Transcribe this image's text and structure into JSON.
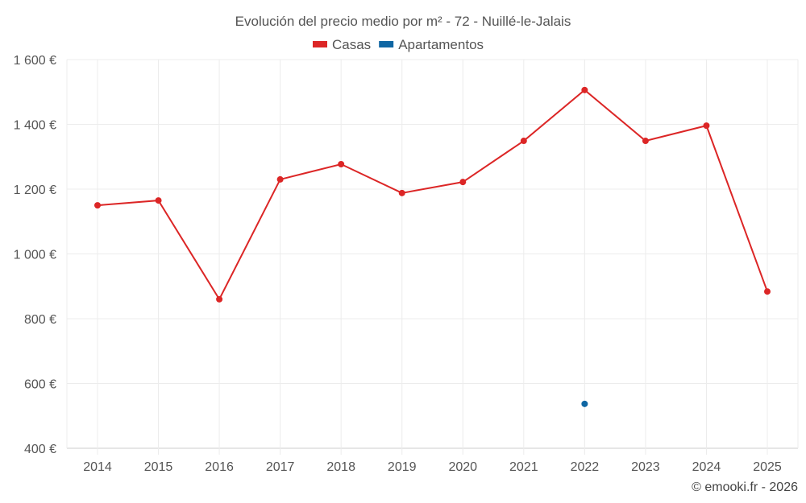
{
  "chart_data": {
    "type": "line",
    "title": "Evolución del precio medio por m² - 72 - Nuillé-le-Jalais",
    "xlabel": "",
    "ylabel": "",
    "categories": [
      "2014",
      "2015",
      "2016",
      "2017",
      "2018",
      "2019",
      "2020",
      "2021",
      "2022",
      "2023",
      "2024",
      "2025"
    ],
    "ylim": [
      400,
      1600
    ],
    "yticks": [
      400,
      600,
      800,
      1000,
      1200,
      1400,
      1600
    ],
    "ytick_labels": [
      "400 €",
      "600 €",
      "800 €",
      "1 000 €",
      "1 200 €",
      "1 400 €",
      "1 600 €"
    ],
    "grid": true,
    "legend_position": "top-center",
    "series": [
      {
        "name": "Casas",
        "color": "#dc2626",
        "values": [
          1150,
          1165,
          860,
          1230,
          1277,
          1188,
          1222,
          1349,
          1506,
          1349,
          1396,
          884
        ]
      },
      {
        "name": "Apartamentos",
        "color": "#0f66a3",
        "values": [
          null,
          null,
          null,
          null,
          null,
          null,
          null,
          null,
          537,
          null,
          null,
          null
        ]
      }
    ]
  },
  "footer": {
    "credit": "© emooki.fr - 2026"
  }
}
